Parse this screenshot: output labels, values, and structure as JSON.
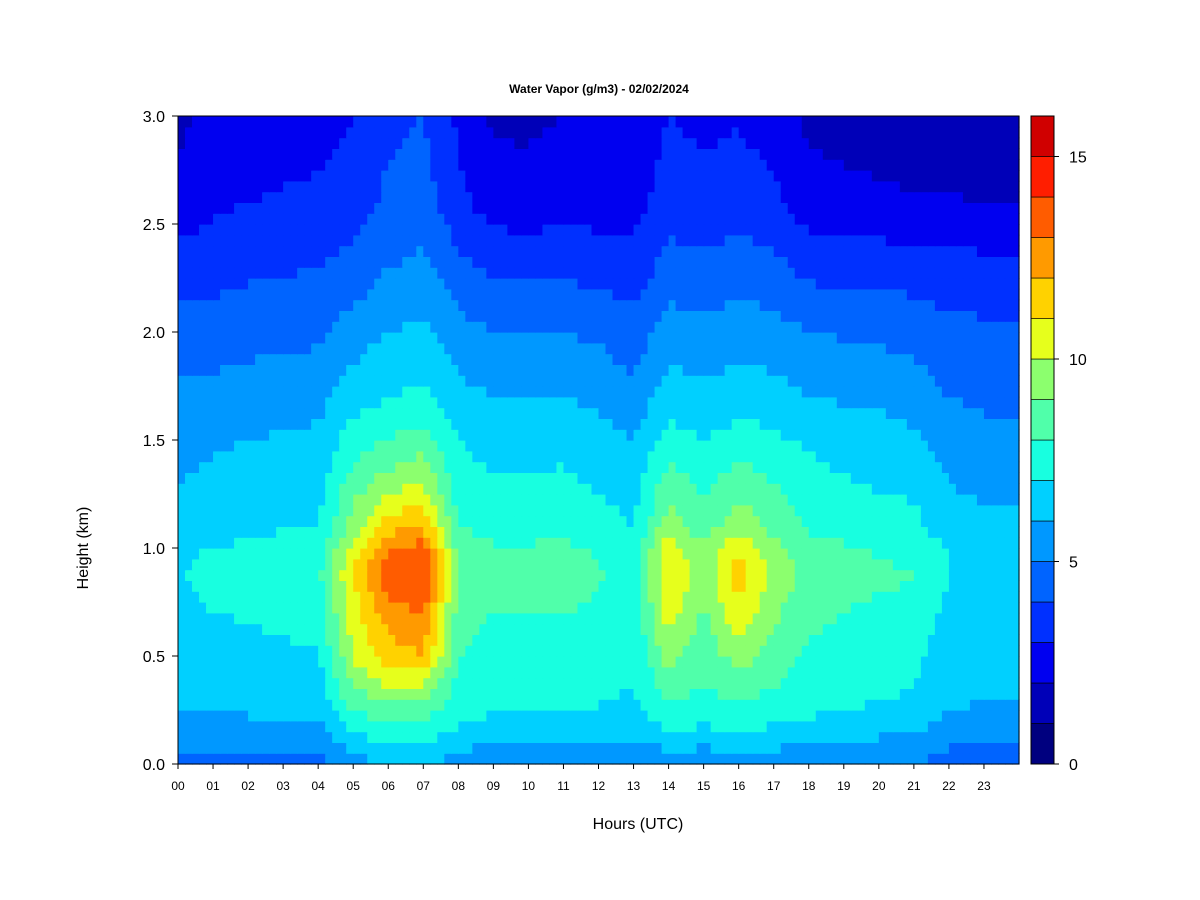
{
  "chart_data": {
    "type": "heatmap",
    "title": "Water Vapor (g/m3) - 02/02/2024",
    "xlabel": "Hours (UTC)",
    "ylabel": "Height (km)",
    "x_range": [
      0,
      24
    ],
    "y_range": [
      0.0,
      3.0
    ],
    "x_ticks": [
      "00",
      "01",
      "02",
      "03",
      "04",
      "05",
      "06",
      "07",
      "08",
      "09",
      "10",
      "11",
      "12",
      "13",
      "14",
      "15",
      "16",
      "17",
      "18",
      "19",
      "20",
      "21",
      "22",
      "23"
    ],
    "y_ticks": [
      "0.0",
      "0.5",
      "1.0",
      "1.5",
      "2.0",
      "2.5",
      "3.0"
    ],
    "y_tick_values": [
      0.0,
      0.5,
      1.0,
      1.5,
      2.0,
      2.5,
      3.0
    ],
    "colorbar": {
      "range": [
        0,
        16
      ],
      "ticks": [
        "0",
        "5",
        "10",
        "15"
      ],
      "tick_values": [
        0,
        5,
        10,
        15
      ],
      "levels": [
        0,
        1,
        2,
        3,
        4,
        5,
        6,
        7,
        8,
        9,
        10,
        11,
        12,
        13,
        14,
        15,
        16
      ],
      "colors": [
        "#00007f",
        "#0000b8",
        "#0000f0",
        "#0030ff",
        "#0064ff",
        "#0098ff",
        "#00d0ff",
        "#18ffe0",
        "#50ffaa",
        "#8cff6e",
        "#e6ff1c",
        "#ffd200",
        "#ff9a00",
        "#ff5c00",
        "#ff1e00",
        "#d00000",
        "#8c0000"
      ]
    },
    "hours": [
      0,
      1,
      2,
      3,
      4,
      5,
      6,
      7,
      8,
      9,
      10,
      11,
      12,
      13,
      14,
      15,
      16,
      17,
      18,
      19,
      20,
      21,
      22,
      23,
      24
    ],
    "heights_km": [
      0.0,
      0.1,
      0.2,
      0.3,
      0.4,
      0.5,
      0.7,
      0.85,
      0.9,
      1.0,
      1.1,
      1.3,
      1.5,
      1.7,
      2.0,
      2.3,
      2.6,
      3.0
    ],
    "water_vapor_profiles": [
      [
        4.5,
        5.2,
        5.8,
        6.2,
        6.2,
        6.3,
        6.6,
        6.9,
        6.9,
        6.8,
        6.4,
        6.0,
        5.7,
        5.2,
        4.5,
        3.5,
        2.3,
        1.8
      ],
      [
        4.5,
        5.2,
        5.8,
        6.2,
        6.3,
        6.5,
        7.0,
        7.3,
        7.3,
        7.0,
        6.5,
        6.2,
        5.9,
        5.3,
        4.5,
        3.6,
        2.8,
        2.2
      ],
      [
        4.6,
        5.3,
        5.9,
        6.3,
        6.4,
        6.6,
        7.1,
        7.4,
        7.4,
        7.2,
        6.7,
        6.4,
        6.0,
        5.5,
        4.6,
        3.8,
        3.0,
        2.4
      ],
      [
        4.6,
        5.3,
        5.9,
        6.4,
        6.5,
        6.8,
        7.3,
        7.6,
        7.6,
        7.4,
        6.9,
        6.5,
        6.1,
        5.6,
        4.7,
        3.9,
        3.1,
        2.6
      ],
      [
        4.7,
        5.4,
        6.0,
        6.5,
        6.6,
        6.9,
        7.4,
        7.7,
        7.7,
        7.5,
        7.0,
        6.6,
        6.2,
        5.7,
        4.8,
        4.0,
        3.2,
        2.6
      ],
      [
        5.5,
        6.5,
        7.5,
        8.5,
        9.5,
        10.0,
        10.5,
        11.0,
        11.0,
        10.5,
        9.5,
        8.5,
        7.5,
        6.5,
        5.5,
        4.3,
        3.5,
        3.0
      ],
      [
        6.0,
        7.0,
        8.0,
        9.0,
        10.5,
        11.5,
        12.5,
        13.5,
        13.5,
        13.0,
        11.5,
        9.5,
        8.0,
        7.0,
        6.0,
        5.0,
        4.2,
        3.8
      ],
      [
        6.2,
        7.0,
        8.0,
        9.0,
        10.5,
        12.0,
        13.0,
        14.0,
        14.0,
        13.5,
        12.0,
        10.0,
        8.5,
        7.2,
        6.2,
        5.2,
        4.5,
        4.0
      ],
      [
        5.5,
        6.3,
        7.2,
        7.6,
        7.8,
        8.0,
        8.5,
        8.8,
        8.8,
        8.6,
        8.0,
        7.5,
        7.0,
        6.3,
        5.4,
        4.3,
        3.3,
        2.8
      ],
      [
        5.2,
        6.0,
        6.8,
        7.2,
        7.4,
        7.6,
        8.0,
        8.3,
        8.3,
        8.1,
        7.6,
        7.1,
        6.6,
        6.0,
        5.0,
        3.8,
        2.5,
        1.8
      ],
      [
        5.2,
        6.0,
        6.8,
        7.2,
        7.4,
        7.6,
        8.0,
        8.3,
        8.3,
        8.1,
        7.6,
        7.1,
        6.6,
        6.0,
        5.0,
        3.7,
        2.4,
        1.8
      ],
      [
        5.2,
        6.0,
        6.8,
        7.2,
        7.4,
        7.6,
        8.0,
        8.4,
        8.4,
        8.2,
        7.7,
        7.2,
        6.7,
        6.0,
        5.0,
        3.8,
        2.6,
        2.0
      ],
      [
        5.1,
        5.9,
        6.7,
        7.1,
        7.3,
        7.4,
        7.8,
        8.1,
        8.1,
        7.9,
        7.4,
        6.9,
        6.4,
        5.8,
        4.8,
        3.6,
        2.5,
        2.0
      ],
      [
        5.0,
        5.8,
        6.6,
        6.9,
        7.0,
        7.1,
        7.3,
        7.5,
        7.5,
        7.4,
        7.0,
        6.5,
        6.0,
        5.3,
        4.4,
        3.4,
        2.6,
        2.3
      ],
      [
        5.4,
        6.4,
        7.4,
        8.0,
        8.6,
        9.5,
        10.5,
        11.0,
        11.0,
        10.8,
        9.5,
        8.5,
        7.5,
        6.5,
        5.5,
        4.4,
        3.5,
        3.0
      ],
      [
        5.3,
        6.2,
        7.2,
        7.8,
        8.0,
        8.3,
        8.8,
        9.2,
        9.2,
        9.0,
        8.4,
        7.8,
        7.0,
        6.2,
        5.3,
        4.3,
        3.3,
        2.8
      ],
      [
        5.4,
        6.4,
        7.4,
        8.0,
        8.6,
        9.5,
        10.8,
        11.5,
        11.5,
        11.0,
        9.8,
        8.6,
        7.5,
        6.5,
        5.5,
        4.5,
        3.5,
        2.9
      ],
      [
        5.3,
        6.3,
        7.2,
        7.8,
        8.2,
        8.6,
        9.2,
        9.6,
        9.6,
        9.4,
        8.7,
        8.0,
        7.2,
        6.4,
        5.4,
        4.3,
        3.2,
        2.6
      ],
      [
        5.2,
        6.0,
        6.9,
        7.4,
        7.6,
        7.8,
        8.3,
        8.6,
        8.6,
        8.4,
        7.9,
        7.4,
        6.8,
        6.0,
        5.0,
        3.7,
        2.4,
        1.8
      ],
      [
        5.1,
        5.9,
        6.8,
        7.2,
        7.4,
        7.6,
        8.0,
        8.3,
        8.3,
        8.1,
        7.6,
        7.1,
        6.6,
        5.9,
        4.9,
        3.6,
        2.3,
        1.6
      ],
      [
        5.0,
        5.8,
        6.6,
        7.0,
        7.2,
        7.4,
        7.8,
        8.1,
        8.1,
        7.9,
        7.4,
        6.9,
        6.4,
        5.8,
        4.8,
        3.6,
        2.2,
        1.5
      ],
      [
        5.0,
        5.7,
        6.5,
        6.9,
        7.1,
        7.3,
        7.7,
        8.0,
        8.0,
        7.8,
        7.3,
        6.8,
        6.2,
        5.6,
        4.6,
        3.5,
        2.1,
        1.3
      ],
      [
        4.5,
        5.1,
        5.8,
        6.2,
        6.3,
        6.4,
        6.7,
        7.0,
        7.0,
        6.9,
        6.4,
        6.0,
        5.5,
        5.0,
        4.3,
        3.4,
        2.1,
        1.2
      ],
      [
        4.4,
        5.0,
        5.6,
        6.0,
        6.1,
        6.2,
        6.5,
        6.7,
        6.7,
        6.6,
        6.2,
        5.8,
        5.3,
        4.8,
        4.2,
        3.3,
        2.0,
        1.1
      ],
      [
        4.4,
        5.0,
        5.6,
        6.0,
        6.1,
        6.2,
        6.5,
        6.7,
        6.7,
        6.6,
        6.2,
        5.8,
        5.3,
        4.8,
        4.2,
        3.3,
        2.0,
        1.1
      ]
    ],
    "grid": false,
    "legend": "colorbar-right"
  }
}
